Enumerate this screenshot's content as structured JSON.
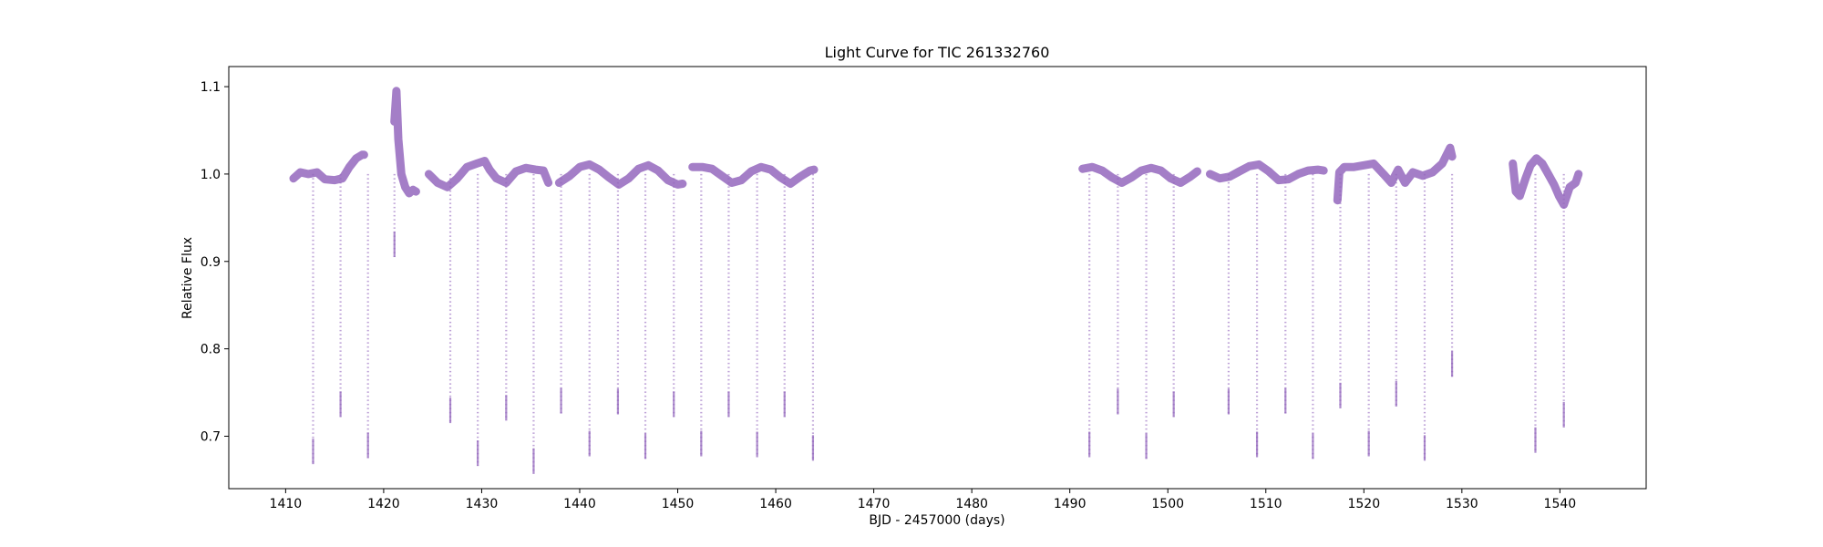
{
  "chart_data": {
    "type": "scatter",
    "title": "Light Curve for TIC 261332760",
    "xlabel": "BJD - 2457000 (days)",
    "ylabel": "Relative Flux",
    "xlim": [
      1404.2,
      1548.8
    ],
    "ylim": [
      0.64,
      1.123
    ],
    "x_ticks": [
      1410,
      1420,
      1430,
      1440,
      1450,
      1460,
      1470,
      1480,
      1490,
      1500,
      1510,
      1520,
      1530,
      1540
    ],
    "y_ticks": [
      0.7,
      0.8,
      0.9,
      1.0,
      1.1
    ],
    "grid": false,
    "series": [
      {
        "color": "#9467bd",
        "segments": [
          {
            "x": [
              1410.8,
              1411.5,
              1412.3,
              1413.2,
              1414.0,
              1415.0,
              1415.8,
              1416.5,
              1417.2,
              1417.8,
              1418.0
            ],
            "y": [
              0.995,
              1.002,
              1.0,
              1.002,
              0.994,
              0.993,
              0.995,
              1.008,
              1.018,
              1.022,
              1.022
            ]
          },
          {
            "x": [
              1421.1,
              1421.3,
              1421.5,
              1421.8,
              1422.2,
              1422.6,
              1423.0,
              1423.3
            ],
            "y": [
              1.06,
              1.095,
              1.04,
              1.0,
              0.985,
              0.978,
              0.982,
              0.98
            ]
          },
          {
            "x": [
              1424.6,
              1425.5,
              1426.5,
              1427.5,
              1428.5,
              1429.5,
              1430.3,
              1430.8,
              1431.5,
              1432.5,
              1433.5,
              1434.5,
              1435.5,
              1436.3,
              1436.8
            ],
            "y": [
              1.0,
              0.99,
              0.985,
              0.995,
              1.008,
              1.012,
              1.015,
              1.005,
              0.995,
              0.99,
              1.003,
              1.007,
              1.005,
              1.004,
              0.99
            ]
          },
          {
            "x": [
              1437.9,
              1439.0,
              1440.0,
              1441.0,
              1442.0,
              1443.0,
              1444.0,
              1445.0,
              1446.0,
              1447.0,
              1448.0,
              1449.0,
              1450.0,
              1450.5
            ],
            "y": [
              0.99,
              0.998,
              1.008,
              1.011,
              1.005,
              0.996,
              0.988,
              0.995,
              1.006,
              1.01,
              1.004,
              0.993,
              0.988,
              0.989
            ]
          },
          {
            "x": [
              1451.5,
              1452.5,
              1453.5,
              1454.5,
              1455.5,
              1456.5,
              1457.5,
              1458.5,
              1459.5,
              1460.5,
              1461.5,
              1462.5,
              1463.5,
              1463.9
            ],
            "y": [
              1.008,
              1.008,
              1.006,
              0.998,
              0.99,
              0.993,
              1.003,
              1.008,
              1.005,
              0.996,
              0.989,
              0.997,
              1.004,
              1.005
            ]
          },
          {
            "x": [
              1491.3,
              1492.3,
              1493.3,
              1494.3,
              1495.3,
              1496.3,
              1497.3,
              1498.3,
              1499.3,
              1500.3,
              1501.3,
              1502.3,
              1503.0
            ],
            "y": [
              1.006,
              1.008,
              1.004,
              0.996,
              0.99,
              0.996,
              1.004,
              1.007,
              1.004,
              0.995,
              0.99,
              0.997,
              1.003
            ]
          },
          {
            "x": [
              1504.3,
              1505.3,
              1506.3,
              1507.3,
              1508.3,
              1509.3,
              1510.3,
              1511.3,
              1512.3,
              1513.3,
              1514.3,
              1515.3,
              1515.9
            ],
            "y": [
              1.0,
              0.995,
              0.997,
              1.003,
              1.009,
              1.011,
              1.003,
              0.993,
              0.994,
              1.0,
              1.004,
              1.005,
              1.004
            ]
          },
          {
            "x": [
              1517.3,
              1517.5,
              1518.0,
              1519.0,
              1520.0,
              1521.0,
              1522.0,
              1522.8,
              1523.5,
              1524.2,
              1525.0,
              1526.0,
              1527.0,
              1528.0,
              1528.8,
              1529.0
            ],
            "y": [
              0.97,
              1.002,
              1.008,
              1.008,
              1.01,
              1.012,
              1.0,
              0.99,
              1.005,
              0.99,
              1.002,
              0.998,
              1.002,
              1.012,
              1.03,
              1.02
            ]
          },
          {
            "x": [
              1535.2,
              1535.5,
              1535.9,
              1536.5,
              1537.0,
              1537.6,
              1538.2,
              1538.8,
              1539.4,
              1539.9,
              1540.4,
              1541.0,
              1541.6,
              1541.9
            ],
            "y": [
              1.012,
              0.98,
              0.975,
              0.995,
              1.01,
              1.018,
              1.012,
              1.0,
              0.988,
              0.975,
              0.965,
              0.985,
              0.99,
              1.0
            ]
          }
        ],
        "dips": [
          {
            "x": 1412.8,
            "min": 0.668
          },
          {
            "x": 1415.6,
            "min": 0.722
          },
          {
            "x": 1418.4,
            "min": 0.675
          },
          {
            "x": 1421.1,
            "min": 0.905
          },
          {
            "x": 1426.8,
            "min": 0.715
          },
          {
            "x": 1429.6,
            "min": 0.666
          },
          {
            "x": 1432.5,
            "min": 0.718
          },
          {
            "x": 1435.3,
            "min": 0.657
          },
          {
            "x": 1438.1,
            "min": 0.726
          },
          {
            "x": 1441.0,
            "min": 0.677
          },
          {
            "x": 1443.9,
            "min": 0.725
          },
          {
            "x": 1446.7,
            "min": 0.674
          },
          {
            "x": 1449.6,
            "min": 0.722
          },
          {
            "x": 1452.4,
            "min": 0.677
          },
          {
            "x": 1455.2,
            "min": 0.722
          },
          {
            "x": 1458.1,
            "min": 0.676
          },
          {
            "x": 1460.9,
            "min": 0.722
          },
          {
            "x": 1463.8,
            "min": 0.672
          },
          {
            "x": 1492.0,
            "min": 0.676
          },
          {
            "x": 1494.9,
            "min": 0.725
          },
          {
            "x": 1497.8,
            "min": 0.674
          },
          {
            "x": 1500.6,
            "min": 0.722
          },
          {
            "x": 1506.2,
            "min": 0.725
          },
          {
            "x": 1509.1,
            "min": 0.676
          },
          {
            "x": 1512.0,
            "min": 0.726
          },
          {
            "x": 1514.8,
            "min": 0.674
          },
          {
            "x": 1517.6,
            "min": 0.732
          },
          {
            "x": 1520.5,
            "min": 0.677
          },
          {
            "x": 1523.3,
            "min": 0.734
          },
          {
            "x": 1526.2,
            "min": 0.672
          },
          {
            "x": 1529.0,
            "min": 0.768
          },
          {
            "x": 1537.5,
            "min": 0.681
          },
          {
            "x": 1540.4,
            "min": 0.71
          }
        ]
      }
    ]
  }
}
